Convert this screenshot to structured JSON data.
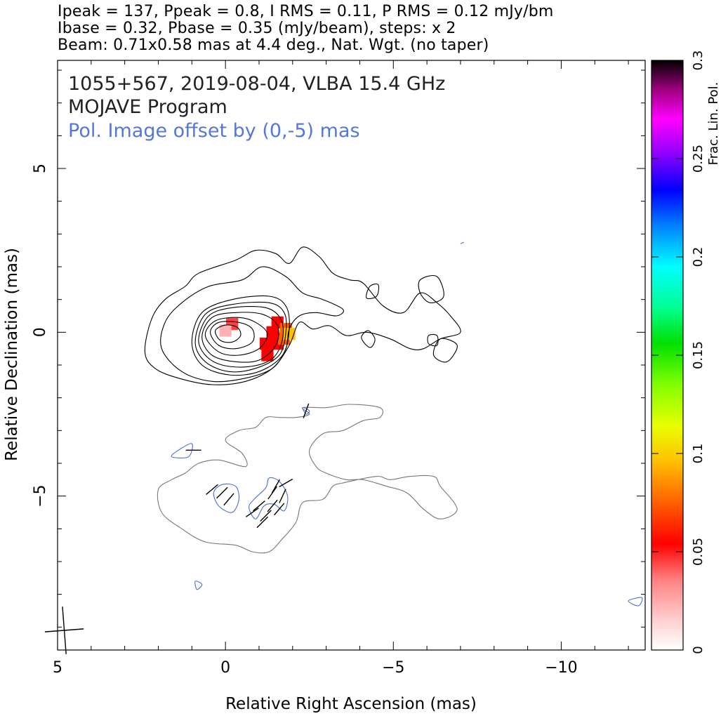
{
  "header": {
    "line1": "Ipeak = 137, Ppeak = 0.8, I RMS = 0.11, P RMS = 0.12 mJy/bm",
    "line2": "Ibase = 0.32, Pbase = 0.35 (mJy/beam), steps: x 2",
    "line3": "Beam: 0.71x0.58 mas at 4.4 deg., Nat. Wgt. (no taper)"
  },
  "chart_data": {
    "type": "contour-map",
    "title_lines": [
      "1055+567, 2019-08-04, VLBA 15.4 GHz",
      "MOJAVE Program"
    ],
    "annotation": "Pol. Image offset by (0,-5) mas",
    "xlabel": "Relative Right Ascension (mas)",
    "ylabel": "Relative Declination (mas)",
    "xlim": [
      5,
      -12.5
    ],
    "ylim": [
      -9.7,
      8.3
    ],
    "x_ticks": [
      5,
      0,
      -5,
      -10
    ],
    "y_ticks": [
      5,
      0,
      -5
    ],
    "x_tick_labels": [
      "5",
      "0",
      "−5",
      "−10"
    ],
    "y_tick_labels": [
      "5",
      "0",
      "−5"
    ],
    "beam": {
      "major_mas": 0.71,
      "minor_mas": 0.58,
      "pa_deg": 4.4,
      "center": [
        4.8,
        -9.1
      ]
    },
    "colorbar": {
      "label": "Frac. Lin. Pol.",
      "range": [
        0,
        0.3
      ],
      "ticks": [
        0,
        0.05,
        0.1,
        0.15,
        0.2,
        0.25,
        0.3
      ],
      "tick_labels": [
        "0",
        "0.05",
        "0.1",
        "0.15",
        "0.2",
        "0.25",
        "0.3"
      ]
    },
    "contour_colors": {
      "stokes_i": "#000000",
      "pol_base": "#777777",
      "pol_level": "#4a70d6",
      "evpa": "#000000"
    },
    "stokes_i_contours": [
      {
        "level": 1,
        "points": [
          [
            2.4,
            -0.6
          ],
          [
            2.2,
            0.4
          ],
          [
            1.8,
            1.0
          ],
          [
            1.2,
            1.4
          ],
          [
            0.8,
            1.8
          ],
          [
            -0.3,
            2.2
          ],
          [
            -0.9,
            2.5
          ],
          [
            -1.5,
            2.4
          ],
          [
            -1.9,
            2.1
          ],
          [
            -2.3,
            2.6
          ],
          [
            -2.8,
            2.3
          ],
          [
            -3.2,
            1.8
          ],
          [
            -3.7,
            1.6
          ],
          [
            -4.1,
            1.5
          ],
          [
            -4.7,
            0.8
          ],
          [
            -5.3,
            0.6
          ],
          [
            -5.8,
            1.2
          ],
          [
            -6.3,
            0.9
          ],
          [
            -6.7,
            0.5
          ],
          [
            -7.0,
            0.0
          ],
          [
            -6.4,
            -0.2
          ],
          [
            -5.9,
            -0.5
          ],
          [
            -5.5,
            -0.5
          ],
          [
            -4.9,
            -0.2
          ],
          [
            -4.2,
            0.0
          ],
          [
            -3.6,
            -0.1
          ],
          [
            -3.1,
            0.2
          ],
          [
            -2.6,
            0.1
          ],
          [
            -2.2,
            0.3
          ],
          [
            -1.9,
            -0.4
          ],
          [
            -1.4,
            -1.1
          ],
          [
            -0.6,
            -1.5
          ],
          [
            0.4,
            -1.6
          ],
          [
            1.4,
            -1.4
          ],
          [
            2.1,
            -1.1
          ]
        ]
      },
      {
        "level": 2,
        "points": [
          [
            1.9,
            -0.5
          ],
          [
            1.8,
            0.3
          ],
          [
            1.3,
            0.9
          ],
          [
            0.5,
            1.4
          ],
          [
            -0.5,
            1.6
          ],
          [
            -1.1,
            2.0
          ],
          [
            -1.8,
            1.7
          ],
          [
            -2.3,
            1.2
          ],
          [
            -2.9,
            1.0
          ],
          [
            -3.5,
            0.7
          ],
          [
            -3.3,
            0.5
          ],
          [
            -2.7,
            0.6
          ],
          [
            -2.2,
            0.5
          ],
          [
            -1.9,
            0.1
          ],
          [
            -1.8,
            -0.5
          ],
          [
            -1.4,
            -1.1
          ],
          [
            -0.6,
            -1.4
          ],
          [
            0.4,
            -1.5
          ],
          [
            1.3,
            -1.2
          ]
        ]
      },
      {
        "level": 3,
        "points": [
          [
            1.0,
            -0.3
          ],
          [
            0.7,
            0.6
          ],
          [
            -0.2,
            1.0
          ],
          [
            -1.3,
            1.1
          ],
          [
            -1.8,
            0.8
          ],
          [
            -1.9,
            0.1
          ],
          [
            -1.7,
            -0.7
          ],
          [
            -1.0,
            -1.2
          ],
          [
            -0.1,
            -1.3
          ],
          [
            0.7,
            -1.0
          ]
        ]
      },
      {
        "level": 4,
        "points": [
          [
            0.9,
            -0.3
          ],
          [
            0.6,
            0.55
          ],
          [
            -0.2,
            0.85
          ],
          [
            -1.3,
            0.9
          ],
          [
            -1.75,
            0.6
          ],
          [
            -1.8,
            0.0
          ],
          [
            -1.6,
            -0.7
          ],
          [
            -0.9,
            -1.1
          ],
          [
            -0.1,
            -1.2
          ],
          [
            0.6,
            -0.9
          ]
        ]
      },
      {
        "level": 5,
        "points": [
          [
            0.8,
            -0.2
          ],
          [
            0.5,
            0.5
          ],
          [
            -0.2,
            0.75
          ],
          [
            -1.2,
            0.75
          ],
          [
            -1.65,
            0.4
          ],
          [
            -1.7,
            -0.2
          ],
          [
            -1.4,
            -0.8
          ],
          [
            -0.7,
            -1.05
          ],
          [
            0.1,
            -1.0
          ],
          [
            0.6,
            -0.7
          ]
        ]
      },
      {
        "level": 6,
        "points": [
          [
            0.7,
            -0.15
          ],
          [
            0.4,
            0.45
          ],
          [
            -0.3,
            0.6
          ],
          [
            -1.1,
            0.55
          ],
          [
            -1.55,
            0.2
          ],
          [
            -1.5,
            -0.4
          ],
          [
            -1.0,
            -0.85
          ],
          [
            -0.3,
            -0.9
          ],
          [
            0.4,
            -0.7
          ]
        ]
      },
      {
        "level": 7,
        "points": [
          [
            0.6,
            -0.1
          ],
          [
            0.3,
            0.35
          ],
          [
            -0.4,
            0.45
          ],
          [
            -0.9,
            0.3
          ],
          [
            -1.25,
            -0.05
          ],
          [
            -1.0,
            -0.5
          ],
          [
            -0.4,
            -0.7
          ],
          [
            0.2,
            -0.6
          ]
        ]
      },
      {
        "level": 8,
        "points": [
          [
            0.45,
            0.0
          ],
          [
            0.2,
            0.3
          ],
          [
            -0.4,
            0.3
          ],
          [
            -0.8,
            0.1
          ],
          [
            -0.8,
            -0.3
          ],
          [
            -0.3,
            -0.5
          ],
          [
            0.2,
            -0.4
          ]
        ]
      },
      {
        "level": 9,
        "points": [
          [
            0.3,
            0.05
          ],
          [
            0.0,
            0.22
          ],
          [
            -0.35,
            0.15
          ],
          [
            -0.45,
            -0.1
          ],
          [
            -0.2,
            -0.3
          ],
          [
            0.15,
            -0.25
          ]
        ]
      },
      {
        "level": 10,
        "points": [
          [
            -4.2,
            -0.4
          ],
          [
            -4.05,
            -0.15
          ],
          [
            -4.25,
            0.05
          ],
          [
            -4.45,
            -0.2
          ],
          [
            -4.35,
            -0.45
          ]
        ]
      },
      {
        "level": 11,
        "points": [
          [
            -4.3,
            1.4
          ],
          [
            -4.55,
            1.45
          ],
          [
            -4.5,
            1.1
          ],
          [
            -4.2,
            1.05
          ]
        ]
      },
      {
        "level": 12,
        "points": [
          [
            -5.8,
            1.6
          ],
          [
            -6.3,
            1.7
          ],
          [
            -6.5,
            1.1
          ],
          [
            -6.1,
            0.9
          ],
          [
            -5.8,
            1.2
          ]
        ]
      },
      {
        "level": 13,
        "points": [
          [
            -6.05,
            -0.1
          ],
          [
            -6.3,
            -0.1
          ],
          [
            -6.3,
            -0.4
          ],
          [
            -6.05,
            -0.35
          ]
        ]
      },
      {
        "level": 14,
        "points": [
          [
            -6.4,
            -0.2
          ],
          [
            -6.9,
            -0.4
          ],
          [
            -6.6,
            -0.9
          ],
          [
            -6.2,
            -0.7
          ]
        ]
      }
    ],
    "pol_base_contour": {
      "points": [
        [
          -2.3,
          -2.3
        ],
        [
          -2.5,
          -2.5
        ],
        [
          -2.1,
          -2.6
        ],
        [
          -1.6,
          -2.6
        ],
        [
          -1.2,
          -2.6
        ],
        [
          -0.9,
          -2.9
        ],
        [
          -0.4,
          -3.0
        ],
        [
          0.0,
          -3.3
        ],
        [
          -0.5,
          -3.7
        ],
        [
          -0.6,
          -4.1
        ],
        [
          0.2,
          -3.9
        ],
        [
          0.8,
          -4.0
        ],
        [
          1.2,
          -4.3
        ],
        [
          1.6,
          -4.5
        ],
        [
          2.0,
          -4.8
        ],
        [
          1.9,
          -5.5
        ],
        [
          1.3,
          -6.0
        ],
        [
          0.6,
          -6.4
        ],
        [
          -0.3,
          -6.5
        ],
        [
          -0.8,
          -6.7
        ],
        [
          -1.3,
          -6.7
        ],
        [
          -1.7,
          -6.3
        ],
        [
          -2.1,
          -5.8
        ],
        [
          -2.3,
          -5.2
        ],
        [
          -2.9,
          -5.1
        ],
        [
          -3.2,
          -4.7
        ],
        [
          -3.5,
          -4.6
        ],
        [
          -4.5,
          -4.4
        ],
        [
          -4.9,
          -4.5
        ],
        [
          -5.5,
          -4.4
        ],
        [
          -6.2,
          -4.4
        ],
        [
          -6.4,
          -4.7
        ],
        [
          -6.9,
          -5.4
        ],
        [
          -6.4,
          -5.7
        ],
        [
          -5.9,
          -5.4
        ],
        [
          -5.4,
          -4.9
        ],
        [
          -4.8,
          -4.7
        ],
        [
          -4.1,
          -4.5
        ],
        [
          -3.6,
          -4.5
        ],
        [
          -3.0,
          -4.3
        ],
        [
          -2.7,
          -4.1
        ],
        [
          -2.5,
          -3.6
        ],
        [
          -2.9,
          -3.1
        ],
        [
          -3.5,
          -3.0
        ],
        [
          -4.1,
          -2.7
        ],
        [
          -4.6,
          -2.6
        ],
        [
          -4.6,
          -2.3
        ],
        [
          -3.7,
          -2.2
        ],
        [
          -3.0,
          -2.3
        ]
      ]
    },
    "pol_level_contours": [
      {
        "points": [
          [
            0.2,
            -5.3
          ],
          [
            0.35,
            -4.9
          ],
          [
            0.1,
            -4.65
          ],
          [
            -0.3,
            -4.7
          ],
          [
            -0.4,
            -5.1
          ],
          [
            -0.2,
            -5.5
          ]
        ]
      },
      {
        "points": [
          [
            -0.9,
            -5.7
          ],
          [
            -1.15,
            -5.3
          ],
          [
            -1.45,
            -5.25
          ],
          [
            -1.75,
            -5.45
          ],
          [
            -1.85,
            -5.0
          ],
          [
            -1.6,
            -4.55
          ],
          [
            -1.3,
            -4.45
          ],
          [
            -1.2,
            -4.75
          ],
          [
            -0.85,
            -5.1
          ],
          [
            -0.7,
            -5.35
          ]
        ]
      },
      {
        "points": [
          [
            1.0,
            -3.4
          ],
          [
            1.4,
            -3.6
          ],
          [
            1.6,
            -3.8
          ],
          [
            1.1,
            -3.8
          ]
        ]
      },
      {
        "points": [
          [
            -2.3,
            -2.3
          ],
          [
            -2.5,
            -2.4
          ],
          [
            -2.4,
            -2.5
          ]
        ]
      },
      {
        "points": [
          [
            -7.0,
            2.7
          ],
          [
            -7.1,
            2.75
          ]
        ]
      },
      {
        "points": [
          [
            0.85,
            -7.85
          ],
          [
            0.7,
            -7.7
          ],
          [
            0.9,
            -7.6
          ]
        ]
      },
      {
        "points": [
          [
            -12.0,
            -8.2
          ],
          [
            -12.4,
            -8.1
          ],
          [
            -12.3,
            -8.35
          ]
        ]
      },
      {
        "points": [
          [
            5.15,
            -3.45
          ],
          [
            5.05,
            -3.5
          ]
        ]
      },
      {
        "points": [
          [
            5.2,
            -3.65
          ],
          [
            5.1,
            -3.7
          ]
        ]
      }
    ],
    "evpa_vectors": [
      {
        "x": 0.95,
        "y": -3.6,
        "angle_deg": 0
      },
      {
        "x": -2.4,
        "y": -2.4,
        "angle_deg": -70
      },
      {
        "x": 0.4,
        "y": -4.8,
        "angle_deg": -40
      },
      {
        "x": 0.1,
        "y": -4.9,
        "angle_deg": -45
      },
      {
        "x": -0.1,
        "y": -5.1,
        "angle_deg": -50
      },
      {
        "x": -0.8,
        "y": -5.5,
        "angle_deg": -35
      },
      {
        "x": -1.0,
        "y": -5.3,
        "angle_deg": -40
      },
      {
        "x": -1.2,
        "y": -5.6,
        "angle_deg": -45
      },
      {
        "x": -1.4,
        "y": -5.3,
        "angle_deg": -50
      },
      {
        "x": -1.1,
        "y": -5.8,
        "angle_deg": -45
      },
      {
        "x": -1.5,
        "y": -4.7,
        "angle_deg": -60
      },
      {
        "x": -1.7,
        "y": -5.0,
        "angle_deg": -65
      },
      {
        "x": -1.4,
        "y": -4.9,
        "angle_deg": -55
      },
      {
        "x": -1.6,
        "y": -5.4,
        "angle_deg": -50
      },
      {
        "x": -1.8,
        "y": -4.6,
        "angle_deg": -30
      }
    ],
    "fractional_pol_pixels": [
      {
        "x": -0.2,
        "y": 0.25,
        "value": 0.03
      },
      {
        "x": 0.0,
        "y": 0.05,
        "value": 0.02
      },
      {
        "x": -1.2,
        "y": -0.35,
        "value": 0.05
      },
      {
        "x": -1.25,
        "y": -0.7,
        "value": 0.055
      },
      {
        "x": -1.4,
        "y": 0.0,
        "value": 0.045
      },
      {
        "x": -1.55,
        "y": -0.35,
        "value": 0.05
      },
      {
        "x": -1.55,
        "y": 0.3,
        "value": 0.05
      },
      {
        "x": -1.8,
        "y": 0.1,
        "value": 0.06
      },
      {
        "x": -1.75,
        "y": -0.2,
        "value": 0.065
      },
      {
        "x": -1.9,
        "y": -0.05,
        "value": 0.09
      }
    ]
  }
}
